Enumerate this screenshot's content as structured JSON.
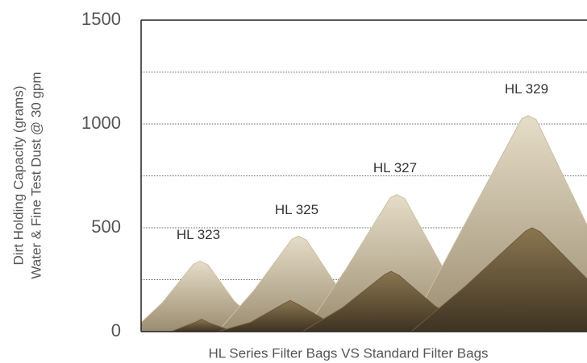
{
  "chart_data": {
    "type": "mountain",
    "y_label_lines": [
      "Dirt Holding Capacity (grams)",
      "Water & Fine Test Dust @ 30 gpm"
    ],
    "x_label": "HL Series Filter Bags VS Standard Filter Bags",
    "categories": [
      "HL 323",
      "HL 325",
      "HL 327",
      "HL 329"
    ],
    "series": [
      {
        "color": "#cbbfa3",
        "values": [
          340,
          460,
          660,
          1040
        ]
      },
      {
        "color": "#6e5d3f",
        "values": [
          60,
          150,
          290,
          500
        ]
      }
    ],
    "ylim": [
      0,
      1500
    ],
    "yticks": [
      0,
      500,
      1000,
      1500
    ],
    "grid_yticks": [
      250,
      500,
      750,
      1000,
      1250
    ],
    "grid": true
  }
}
